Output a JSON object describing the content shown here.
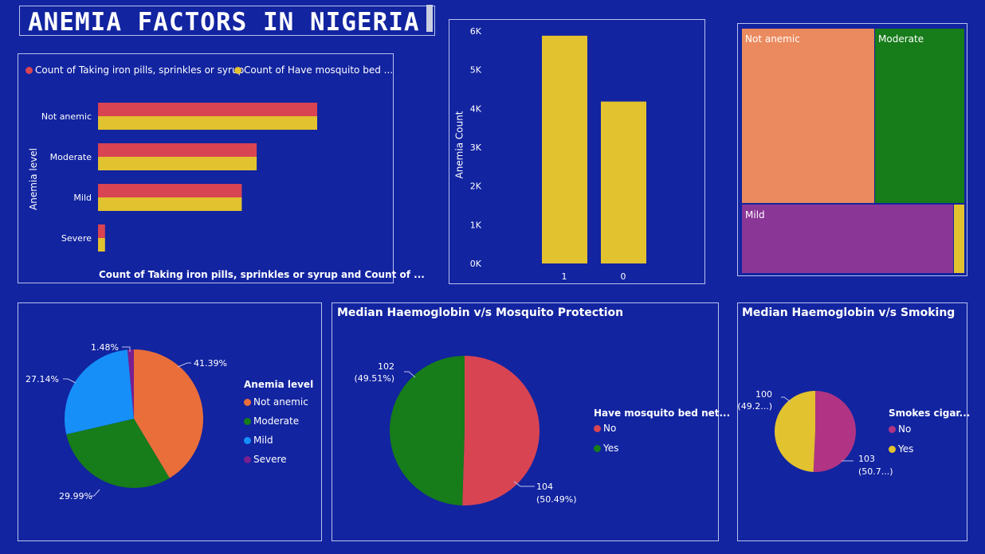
{
  "page": {
    "title": "ANEMIA FACTORS IN NIGERIA"
  },
  "colors": {
    "background": "#1224a0",
    "red": "#d94452",
    "yellow": "#e2c22f",
    "orange": "#e96e3a",
    "green": "#177c1a",
    "blue": "#168ff8",
    "purple": "#7a1f8f",
    "treemap_salmon": "#ea8a5e",
    "treemap_purple": "#8a3697",
    "magenta": "#b03483"
  },
  "chart_data": [
    {
      "id": "bar_by_level",
      "type": "bar",
      "orientation": "horizontal",
      "legend": [
        "Count of Taking iron pills, sprinkles or syrup",
        "Count of Have mosquito bed ..."
      ],
      "categories": [
        "Not anemic",
        "Moderate",
        "Mild",
        "Severe"
      ],
      "series": [
        {
          "name": "Count of Taking iron pills, sprinkles or syrup",
          "values": [
            2500,
            1810,
            1640,
            80
          ]
        },
        {
          "name": "Count of Have mosquito bed ...",
          "values": [
            2500,
            1810,
            1640,
            80
          ]
        }
      ],
      "xlabel": "Count of Taking iron pills, sprinkles or syrup and Count of ...",
      "ylabel": "Anemia level",
      "xlim": [
        0,
        3000
      ]
    },
    {
      "id": "column_count",
      "type": "bar",
      "categories": [
        "1",
        "0"
      ],
      "values": [
        5880,
        4180
      ],
      "ylabel": "Anemia Count",
      "yticks": [
        "0K",
        "1K",
        "2K",
        "3K",
        "4K",
        "5K",
        "6K"
      ],
      "ylim": [
        0,
        6000
      ]
    },
    {
      "id": "treemap",
      "type": "treemap",
      "categories": [
        "Not anemic",
        "Moderate",
        "Mild",
        "Severe"
      ],
      "values": [
        41.39,
        29.99,
        27.14,
        1.48
      ],
      "labels": [
        "Not anemic",
        "Moderate",
        "Mild"
      ]
    },
    {
      "id": "pie_level",
      "type": "pie",
      "legend_title": "Anemia level",
      "categories": [
        "Not anemic",
        "Moderate",
        "Mild",
        "Severe"
      ],
      "values": [
        41.39,
        29.99,
        27.14,
        1.48
      ],
      "labels": [
        "41.39%",
        "29.99%",
        "27.14%",
        "1.48%"
      ]
    },
    {
      "id": "pie_mosquito",
      "type": "pie",
      "title": "Median Haemoglobin v/s Mosquito Protection",
      "legend_title": "Have mosquito bed net...",
      "categories": [
        "No",
        "Yes"
      ],
      "values": [
        104,
        102
      ],
      "labels": [
        [
          "104",
          "(50.49%)"
        ],
        [
          "102",
          "(49.51%)"
        ]
      ]
    },
    {
      "id": "pie_smoking",
      "type": "pie",
      "title": "Median Haemoglobin v/s Smoking",
      "legend_title": "Smokes cigar...",
      "categories": [
        "No",
        "Yes"
      ],
      "values": [
        103,
        100
      ],
      "labels": [
        [
          "103",
          "(50.7...)"
        ],
        [
          "100",
          "(49.2...)"
        ]
      ]
    }
  ]
}
